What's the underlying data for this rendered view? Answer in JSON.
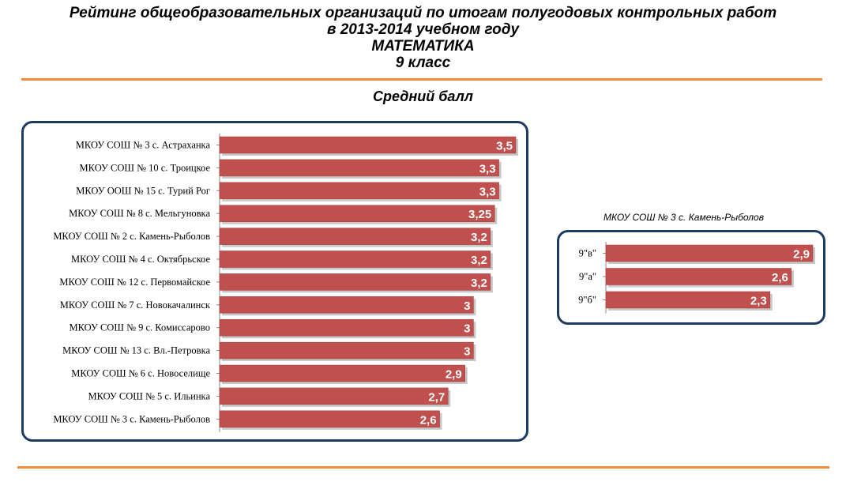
{
  "header": {
    "title_lines": [
      "Рейтинг общеобразовательных  организаций по итогам полугодовых контрольных работ",
      "в 2013-2014 учебном году",
      "МАТЕМАТИКА",
      "9 класс"
    ],
    "subtitle": "Средний балл"
  },
  "colors": {
    "bar": "#c0504d",
    "panel_border": "#1f3a5f",
    "rule": "#f08a3c"
  },
  "side_chart": {
    "caption": "МКОУ СОШ № 3 с. Камень-Рыболов"
  },
  "chart_data": [
    {
      "type": "bar",
      "orientation": "horizontal",
      "title": "Средний балл",
      "categories": [
        "МКОУ СОШ № 3 с. Астраханка",
        "МКОУ СОШ № 10 с. Троицкое",
        "МКОУ ООШ № 15 с. Турий Рог",
        "МКОУ СОШ № 8 с. Мельгуновка",
        "МКОУ СОШ № 2 с. Камень-Рыболов",
        "МКОУ СОШ № 4 с. Октябрьское",
        "МКОУ СОШ № 12 с. Первомайское",
        "МКОУ СОШ № 7 с. Новокачалинск",
        "МКОУ СОШ № 9 с. Комиссарово",
        "МКОУ СОШ № 13 с. Вл.-Петровка",
        "МКОУ СОШ № 6 с. Новоселище",
        "МКОУ СОШ № 5 с. Ильинка",
        "МКОУ СОШ № 3 с. Камень-Рыболов"
      ],
      "values": [
        3.5,
        3.3,
        3.3,
        3.25,
        3.2,
        3.2,
        3.2,
        3,
        3,
        3,
        2.9,
        2.7,
        2.6
      ],
      "value_labels": [
        "3,5",
        "3,3",
        "3,3",
        "3,25",
        "3,2",
        "3,2",
        "3,2",
        "3",
        "3",
        "3",
        "2,9",
        "2,7",
        "2,6"
      ],
      "xlim": [
        0,
        3.5
      ],
      "grid": false,
      "legend": "none"
    },
    {
      "type": "bar",
      "orientation": "horizontal",
      "title": "МКОУ СОШ № 3 с. Камень-Рыболов",
      "categories": [
        "9\"в\"",
        "9\"а\"",
        "9\"б\""
      ],
      "values": [
        2.9,
        2.6,
        2.3
      ],
      "value_labels": [
        "2,9",
        "2,6",
        "2,3"
      ],
      "xlim": [
        0,
        2.9
      ],
      "grid": false,
      "legend": "none"
    }
  ]
}
